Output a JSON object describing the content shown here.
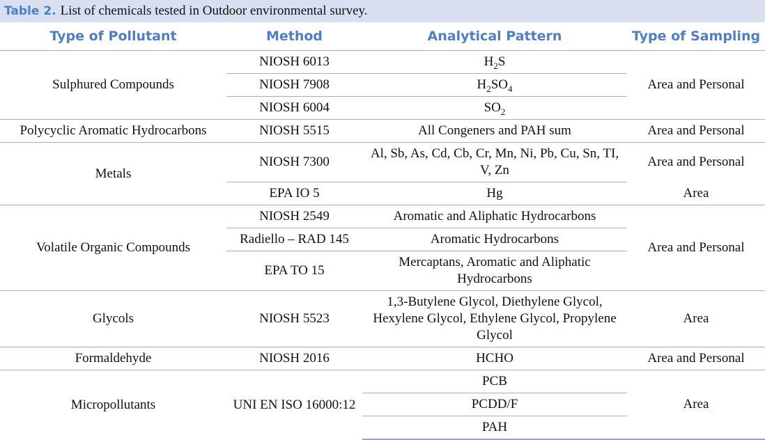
{
  "caption": {
    "label": "Table 2.",
    "text": "List of chemicals tested in Outdoor environmental survey."
  },
  "header": [
    "Type of Pollutant",
    "Method",
    "Analytical Pattern",
    "Type of Sampling"
  ],
  "groups": [
    {
      "pollutant": "Sulphured Compounds",
      "sampling": "Area and Personal",
      "methods": [
        {
          "method": "NIOSH 6013",
          "patterns": [
            [
              "H",
              "2",
              "S"
            ]
          ]
        },
        {
          "method": "NIOSH 7908",
          "patterns": [
            [
              "H",
              "2",
              "SO",
              "4"
            ]
          ]
        },
        {
          "method": "NIOSH 6004",
          "patterns": [
            [
              "SO",
              "2"
            ]
          ]
        }
      ]
    },
    {
      "pollutant": "Polycyclic Aromatic Hydrocarbons",
      "sampling": "Area and Personal",
      "methods": [
        {
          "method": "NIOSH 5515",
          "patterns": [
            [
              "All Congeners and PAH sum"
            ]
          ]
        }
      ]
    },
    {
      "pollutant": "Metals",
      "methods": [
        {
          "method": "NIOSH 7300",
          "patterns": [
            [
              "Al, Sb, As, Cd, Cb, Cr, Mn, Ni, Pb, Cu, Sn, TI, V, Zn"
            ]
          ],
          "sampling": "Area and Personal"
        },
        {
          "method": "EPA IO 5",
          "patterns": [
            [
              "Hg"
            ]
          ],
          "sampling": "Area"
        }
      ]
    },
    {
      "pollutant": "Volatile Organic Compounds",
      "sampling": "Area and Personal",
      "methods": [
        {
          "method": "NIOSH 2549",
          "patterns": [
            [
              "Aromatic and Aliphatic Hydrocarbons"
            ]
          ]
        },
        {
          "method": "Radiello – RAD 145",
          "patterns": [
            [
              "Aromatic Hydrocarbons"
            ]
          ]
        },
        {
          "method": "EPA TO 15",
          "patterns": [
            [
              "Mercaptans, Aromatic and Aliphatic Hydrocarbons"
            ]
          ]
        }
      ]
    },
    {
      "pollutant": "Glycols",
      "sampling": "Area",
      "methods": [
        {
          "method": "NIOSH 5523",
          "patterns": [
            [
              "1,3-Butylene Glycol, Diethylene Glycol, Hexylene Glycol, Ethylene Glycol, Propylene Glycol"
            ]
          ]
        }
      ]
    },
    {
      "pollutant": "Formaldehyde",
      "sampling": "Area and Personal",
      "methods": [
        {
          "method": "NIOSH 2016",
          "patterns": [
            [
              "HCHO"
            ]
          ]
        }
      ]
    },
    {
      "pollutant": "Micropollutants",
      "sampling": "Area",
      "methods": [
        {
          "method": "UNI EN ISO 16000:12",
          "patterns": [
            [
              "PCB"
            ],
            [
              "PCDD/F"
            ],
            [
              "PAH"
            ]
          ]
        }
      ]
    }
  ]
}
